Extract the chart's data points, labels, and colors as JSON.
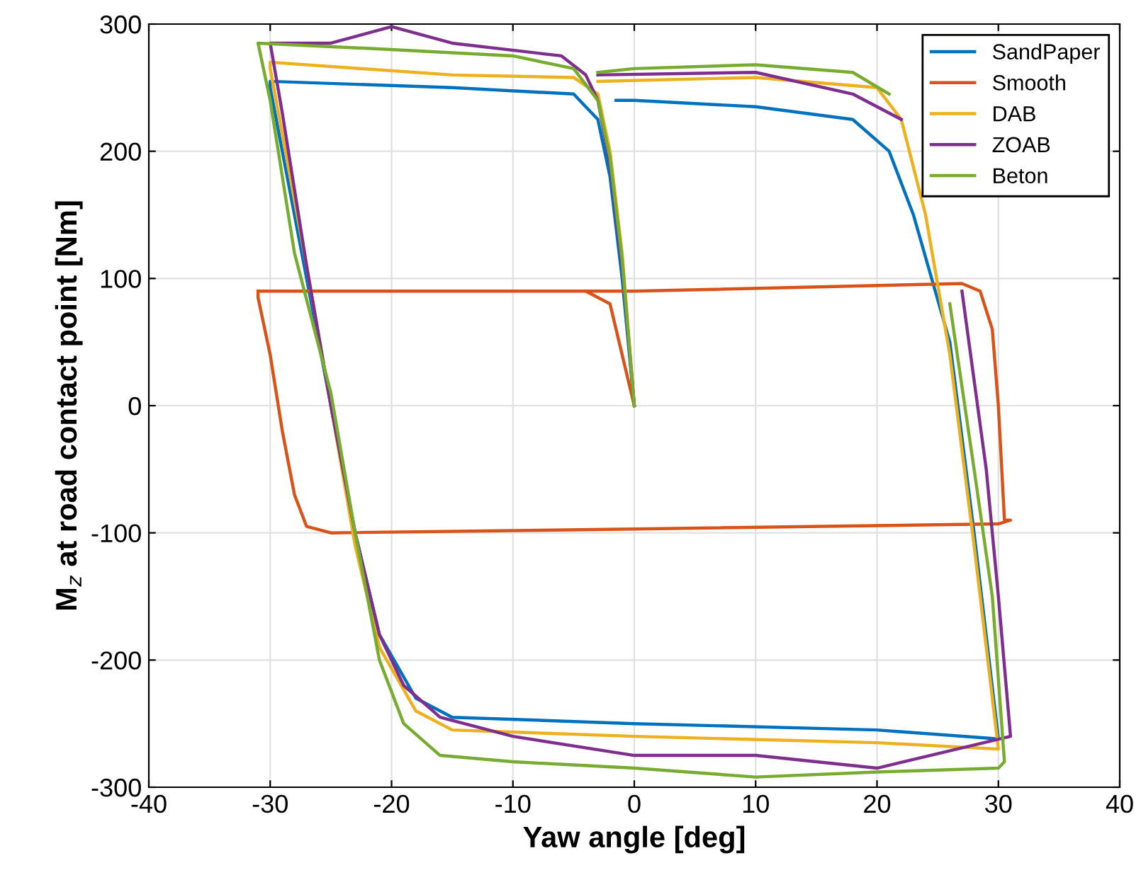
{
  "chart_data": {
    "type": "line",
    "xlabel": "Yaw angle [deg]",
    "ylabel": "M$_{z}$ at road contact point [Nm]",
    "xlim": [
      -40,
      40
    ],
    "ylim": [
      -300,
      300
    ],
    "xticks": [
      -40,
      -30,
      -20,
      -10,
      0,
      10,
      20,
      30,
      40
    ],
    "yticks": [
      -300,
      -200,
      -100,
      0,
      100,
      200,
      300
    ],
    "grid": true,
    "legend": "top right",
    "series": [
      {
        "name": "SandPaper",
        "color": "#0072bd",
        "x": [
          0,
          -1,
          -2,
          -3,
          -5,
          -15,
          -30,
          -30,
          -27,
          -25,
          -23,
          -21,
          -18,
          -15,
          0,
          20,
          30,
          28,
          26,
          23,
          21,
          18,
          10,
          0,
          -1.5
        ],
        "values": [
          0,
          100,
          180,
          225,
          245,
          250,
          255,
          250,
          100,
          0,
          -100,
          -180,
          -230,
          -245,
          -250,
          -255,
          -262,
          -100,
          50,
          150,
          200,
          225,
          235,
          240,
          240
        ]
      },
      {
        "name": "Smooth",
        "color": "#d95319",
        "x": [
          0,
          -1,
          -2,
          -4,
          -31,
          -31,
          -30,
          -29,
          -28,
          -27,
          -25,
          0,
          30,
          31,
          30.5,
          30,
          29.5,
          28.5,
          27,
          0,
          -31
        ],
        "values": [
          0,
          40,
          80,
          90,
          90,
          85,
          40,
          -20,
          -70,
          -95,
          -100,
          -97,
          -93,
          -90,
          -90,
          0,
          60,
          90,
          96,
          90,
          90
        ]
      },
      {
        "name": "DAB",
        "color": "#edb120",
        "x": [
          0,
          -1,
          -2,
          -3,
          -5,
          -15,
          -30,
          -30,
          -27,
          -25,
          -23,
          -21,
          -18,
          -15,
          0,
          20,
          30,
          28,
          26,
          24,
          22,
          20,
          10,
          -3
        ],
        "values": [
          0,
          120,
          200,
          245,
          258,
          260,
          270,
          265,
          110,
          0,
          -110,
          -190,
          -240,
          -255,
          -260,
          -265,
          -270,
          -110,
          40,
          150,
          225,
          250,
          258,
          255
        ]
      },
      {
        "name": "ZOAB",
        "color": "#7e2f8e",
        "x": [
          0,
          -1,
          -2,
          -3,
          -4,
          -6,
          -15,
          -20,
          -25,
          -30,
          -29,
          -27,
          -25,
          -23,
          -21,
          -19,
          -16,
          -10,
          0,
          10,
          20,
          31,
          30,
          29,
          27,
          25,
          22,
          18,
          10,
          -3
        ],
        "values": [
          0,
          110,
          190,
          240,
          260,
          275,
          285,
          298,
          285,
          285,
          230,
          110,
          0,
          -100,
          -180,
          -220,
          -245,
          -260,
          -275,
          -275,
          -285,
          -260,
          -150,
          -50,
          90,
          null,
          225,
          245,
          262,
          260
        ]
      },
      {
        "name": "Beton",
        "color": "#77ac30",
        "x": [
          0,
          -1,
          -2,
          -3,
          -5,
          -10,
          -20,
          -31,
          -30,
          -28,
          -25,
          -23,
          -21,
          -19,
          -16,
          -10,
          0,
          10,
          20,
          30,
          30.5,
          29.5,
          28,
          26,
          24,
          21,
          18,
          10,
          0,
          -3
        ],
        "values": [
          0,
          115,
          195,
          240,
          265,
          275,
          280,
          285,
          240,
          120,
          10,
          -100,
          -200,
          -250,
          -275,
          -280,
          -285,
          -292,
          -288,
          -285,
          -280,
          -150,
          -50,
          80,
          null,
          245,
          262,
          268,
          265,
          262
        ]
      }
    ]
  }
}
